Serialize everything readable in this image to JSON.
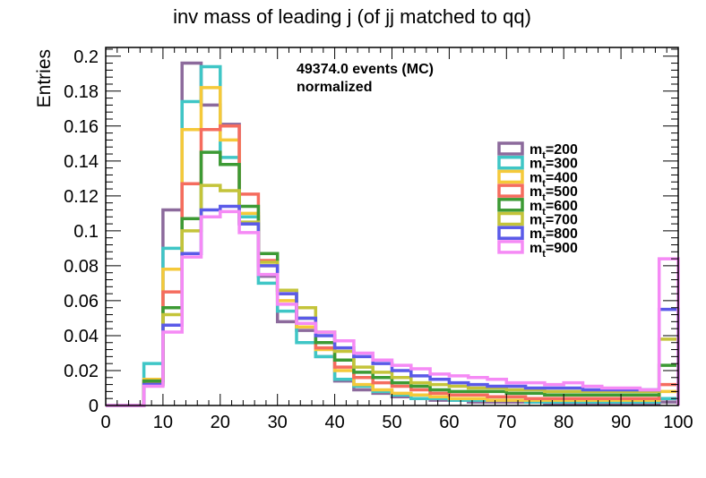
{
  "chart_data": {
    "type": "step-histogram",
    "title": "inv mass of leading j (of jj matched to qq)",
    "xlabel": "",
    "ylabel": "Entries",
    "xlim": [
      0,
      100
    ],
    "ylim": [
      0,
      0.205
    ],
    "x_ticks": [
      "0",
      "10",
      "20",
      "30",
      "40",
      "50",
      "60",
      "70",
      "80",
      "90",
      "100"
    ],
    "y_ticks": [
      "0",
      "0.02",
      "0.04",
      "0.06",
      "0.08",
      "0.1",
      "0.12",
      "0.14",
      "0.16",
      "0.18",
      "0.2"
    ],
    "annotations": [
      "49374.0 events (MC)",
      "normalized"
    ],
    "bin_edges": [
      0,
      3.333,
      6.667,
      10,
      13.333,
      16.667,
      20,
      23.333,
      26.667,
      30,
      33.333,
      36.667,
      40,
      43.333,
      46.667,
      50,
      53.333,
      56.667,
      60,
      63.333,
      66.667,
      70,
      73.333,
      76.667,
      80,
      83.333,
      86.667,
      90,
      93.333,
      96.667,
      100
    ],
    "legend_position": "right",
    "series": [
      {
        "name": "m_t=200",
        "name_base": "m",
        "name_sub": "t",
        "name_suffix": "=200",
        "color": "#8c6a9c",
        "values": [
          0,
          0,
          0.013,
          0.112,
          0.196,
          0.172,
          0.161,
          0.104,
          0.074,
          0.048,
          0.043,
          0.028,
          0.014,
          0.009,
          0.007,
          0.005,
          0.004,
          0.003,
          0.003,
          0.002,
          0.002,
          0.002,
          0.002,
          0.001,
          0.001,
          0.001,
          0.001,
          0.001,
          0.001,
          0.002
        ]
      },
      {
        "name": "m_t=300",
        "name_base": "m",
        "name_sub": "t",
        "name_suffix": "=300",
        "color": "#3fc6c6",
        "values": [
          0,
          0,
          0.024,
          0.09,
          0.174,
          0.194,
          0.142,
          0.108,
          0.07,
          0.054,
          0.036,
          0.028,
          0.015,
          0.011,
          0.008,
          0.006,
          0.004,
          0.004,
          0.003,
          0.003,
          0.003,
          0.003,
          0.002,
          0.002,
          0.002,
          0.002,
          0.002,
          0.002,
          0.002,
          0.004
        ]
      },
      {
        "name": "m_t=400",
        "name_base": "m",
        "name_sub": "t",
        "name_suffix": "=400",
        "color": "#f5c93a",
        "values": [
          0,
          0,
          0.015,
          0.078,
          0.158,
          0.182,
          0.152,
          0.11,
          0.08,
          0.06,
          0.045,
          0.032,
          0.02,
          0.012,
          0.009,
          0.007,
          0.006,
          0.005,
          0.004,
          0.004,
          0.003,
          0.003,
          0.003,
          0.003,
          0.003,
          0.003,
          0.003,
          0.003,
          0.003,
          0.008
        ]
      },
      {
        "name": "m_t=500",
        "name_base": "m",
        "name_sub": "t",
        "name_suffix": "=500",
        "color": "#f56c5e",
        "values": [
          0,
          0,
          0.014,
          0.065,
          0.127,
          0.158,
          0.16,
          0.121,
          0.083,
          0.064,
          0.047,
          0.033,
          0.022,
          0.016,
          0.013,
          0.011,
          0.009,
          0.007,
          0.006,
          0.006,
          0.005,
          0.005,
          0.004,
          0.004,
          0.004,
          0.004,
          0.004,
          0.004,
          0.004,
          0.012
        ]
      },
      {
        "name": "m_t=600",
        "name_base": "m",
        "name_sub": "t",
        "name_suffix": "=600",
        "color": "#3c9a34",
        "values": [
          0,
          0,
          0.014,
          0.056,
          0.107,
          0.145,
          0.138,
          0.114,
          0.087,
          0.066,
          0.05,
          0.036,
          0.026,
          0.019,
          0.016,
          0.013,
          0.011,
          0.009,
          0.008,
          0.008,
          0.008,
          0.007,
          0.007,
          0.006,
          0.006,
          0.006,
          0.006,
          0.006,
          0.006,
          0.023
        ]
      },
      {
        "name": "m_t=700",
        "name_base": "m",
        "name_sub": "t",
        "name_suffix": "=700",
        "color": "#c4c43a",
        "values": [
          0,
          0,
          0.012,
          0.052,
          0.1,
          0.126,
          0.123,
          0.105,
          0.082,
          0.066,
          0.056,
          0.042,
          0.031,
          0.022,
          0.019,
          0.016,
          0.013,
          0.012,
          0.011,
          0.01,
          0.01,
          0.009,
          0.009,
          0.008,
          0.008,
          0.008,
          0.008,
          0.008,
          0.008,
          0.038
        ]
      },
      {
        "name": "m_t=800",
        "name_base": "m",
        "name_sub": "t",
        "name_suffix": "=800",
        "color": "#5a5ae8",
        "values": [
          0,
          0,
          0.012,
          0.046,
          0.087,
          0.112,
          0.114,
          0.104,
          0.08,
          0.064,
          0.05,
          0.04,
          0.033,
          0.028,
          0.024,
          0.02,
          0.017,
          0.015,
          0.013,
          0.012,
          0.011,
          0.011,
          0.01,
          0.01,
          0.01,
          0.009,
          0.009,
          0.009,
          0.009,
          0.055
        ]
      },
      {
        "name": "m_t=900",
        "name_base": "m",
        "name_sub": "t",
        "name_suffix": "=900",
        "color": "#f58af5",
        "values": [
          0,
          0,
          0.011,
          0.042,
          0.085,
          0.108,
          0.111,
          0.099,
          0.075,
          0.058,
          0.047,
          0.042,
          0.037,
          0.03,
          0.026,
          0.023,
          0.021,
          0.018,
          0.017,
          0.016,
          0.015,
          0.013,
          0.013,
          0.012,
          0.013,
          0.011,
          0.01,
          0.01,
          0.009,
          0.084
        ]
      }
    ]
  }
}
